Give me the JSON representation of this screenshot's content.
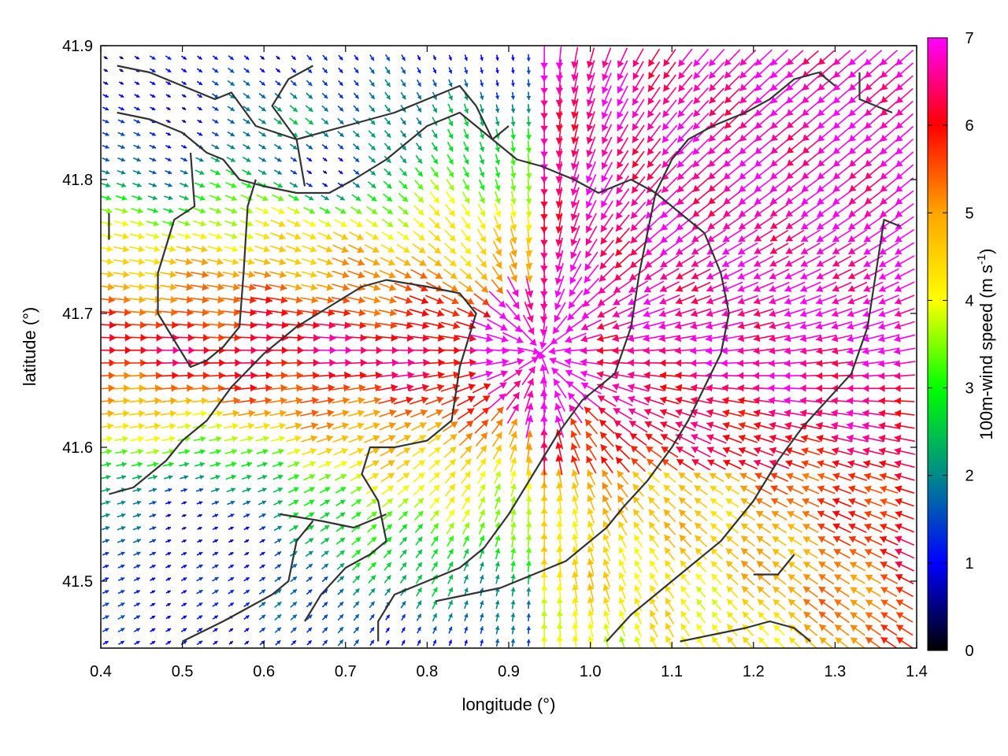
{
  "chart_data": {
    "type": "vector-field",
    "xlabel": "longitude (°)",
    "ylabel": "latitude (°)",
    "xlim": [
      0.4,
      1.4
    ],
    "ylim": [
      41.45,
      41.9
    ],
    "x_ticks": [
      "0.4",
      "0.5",
      "0.6",
      "0.7",
      "0.8",
      "0.9",
      "1.0",
      "1.1",
      "1.2",
      "1.3",
      "1.4"
    ],
    "y_ticks": [
      "41.5",
      "41.6",
      "41.7",
      "41.8",
      "41.9"
    ],
    "grid": false,
    "colorbar": {
      "label_main": "100m-wind speed (m s",
      "label_sup": "-1",
      "label_end": ")",
      "range": [
        0,
        7
      ],
      "ticks": [
        "0",
        "1",
        "2",
        "3",
        "4",
        "5",
        "6",
        "7"
      ],
      "colors": [
        "#000000",
        "#0000ff",
        "#008a8a",
        "#00ff00",
        "#ffff00",
        "#ffa500",
        "#ff0000",
        "#ff00ff"
      ]
    },
    "contour_color": "#333333",
    "contours": [
      [
        [
          0.42,
          41.885
        ],
        [
          0.46,
          41.88
        ],
        [
          0.5,
          41.87
        ],
        [
          0.54,
          41.86
        ],
        [
          0.56,
          41.865
        ],
        [
          0.59,
          41.84
        ],
        [
          0.64,
          41.83
        ],
        [
          0.7,
          41.84
        ],
        [
          0.76,
          41.85
        ],
        [
          0.8,
          41.86
        ],
        [
          0.84,
          41.87
        ],
        [
          0.86,
          41.855
        ]
      ],
      [
        [
          0.42,
          41.85
        ],
        [
          0.46,
          41.845
        ],
        [
          0.5,
          41.835
        ],
        [
          0.53,
          41.82
        ],
        [
          0.55,
          41.815
        ],
        [
          0.57,
          41.8
        ],
        [
          0.6,
          41.795
        ],
        [
          0.64,
          41.79
        ],
        [
          0.68,
          41.79
        ],
        [
          0.71,
          41.8
        ],
        [
          0.75,
          41.815
        ],
        [
          0.8,
          41.84
        ],
        [
          0.84,
          41.85
        ],
        [
          0.88,
          41.83
        ],
        [
          0.9,
          41.84
        ]
      ],
      [
        [
          0.41,
          41.775
        ],
        [
          0.41,
          41.755
        ]
      ],
      [
        [
          0.51,
          41.82
        ],
        [
          0.515,
          41.78
        ],
        [
          0.49,
          41.77
        ],
        [
          0.47,
          41.73
        ],
        [
          0.47,
          41.7
        ],
        [
          0.49,
          41.68
        ],
        [
          0.51,
          41.66
        ],
        [
          0.53,
          41.665
        ],
        [
          0.55,
          41.675
        ],
        [
          0.57,
          41.69
        ],
        [
          0.575,
          41.73
        ],
        [
          0.58,
          41.78
        ],
        [
          0.59,
          41.8
        ]
      ],
      [
        [
          0.41,
          41.565
        ],
        [
          0.44,
          41.57
        ],
        [
          0.48,
          41.59
        ],
        [
          0.5,
          41.605
        ],
        [
          0.53,
          41.62
        ],
        [
          0.56,
          41.645
        ],
        [
          0.6,
          41.67
        ],
        [
          0.64,
          41.69
        ],
        [
          0.68,
          41.705
        ],
        [
          0.72,
          41.72
        ],
        [
          0.75,
          41.725
        ],
        [
          0.8,
          41.72
        ],
        [
          0.84,
          41.715
        ],
        [
          0.86,
          41.7
        ],
        [
          0.84,
          41.66
        ],
        [
          0.83,
          41.62
        ],
        [
          0.8,
          41.605
        ],
        [
          0.76,
          41.6
        ],
        [
          0.73,
          41.6
        ],
        [
          0.72,
          41.58
        ],
        [
          0.74,
          41.56
        ],
        [
          0.75,
          41.53
        ],
        [
          0.73,
          41.52
        ],
        [
          0.7,
          41.51
        ],
        [
          0.67,
          41.49
        ],
        [
          0.65,
          41.47
        ]
      ],
      [
        [
          0.62,
          41.55
        ],
        [
          0.67,
          41.545
        ],
        [
          0.71,
          41.54
        ],
        [
          0.75,
          41.55
        ]
      ],
      [
        [
          0.5,
          41.455
        ],
        [
          0.55,
          41.47
        ],
        [
          0.58,
          41.48
        ],
        [
          0.61,
          41.49
        ],
        [
          0.63,
          41.5
        ],
        [
          0.64,
          41.53
        ],
        [
          0.66,
          41.545
        ]
      ],
      [
        [
          0.74,
          41.455
        ],
        [
          0.74,
          41.47
        ],
        [
          0.76,
          41.49
        ],
        [
          0.8,
          41.5
        ],
        [
          0.84,
          41.51
        ],
        [
          0.87,
          41.525
        ],
        [
          0.9,
          41.55
        ],
        [
          0.93,
          41.58
        ],
        [
          0.96,
          41.61
        ],
        [
          0.99,
          41.635
        ],
        [
          1.03,
          41.655
        ],
        [
          1.05,
          41.69
        ],
        [
          1.06,
          41.73
        ],
        [
          1.07,
          41.76
        ],
        [
          1.08,
          41.79
        ],
        [
          1.1,
          41.815
        ],
        [
          1.12,
          41.83
        ],
        [
          1.15,
          41.84
        ],
        [
          1.19,
          41.85
        ],
        [
          1.22,
          41.86
        ],
        [
          1.25,
          41.875
        ],
        [
          1.28,
          41.88
        ],
        [
          1.3,
          41.87
        ]
      ],
      [
        [
          0.86,
          41.855
        ],
        [
          0.88,
          41.83
        ],
        [
          0.91,
          41.815
        ],
        [
          0.94,
          41.81
        ],
        [
          0.98,
          41.8
        ],
        [
          1.01,
          41.79
        ],
        [
          1.05,
          41.8
        ],
        [
          1.08,
          41.79
        ],
        [
          1.1,
          41.78
        ],
        [
          1.14,
          41.76
        ],
        [
          1.16,
          41.73
        ],
        [
          1.17,
          41.7
        ],
        [
          1.16,
          41.67
        ],
        [
          1.14,
          41.645
        ],
        [
          1.12,
          41.62
        ],
        [
          1.1,
          41.6
        ],
        [
          1.07,
          41.575
        ],
        [
          1.04,
          41.555
        ],
        [
          1.02,
          41.54
        ],
        [
          1.0,
          41.53
        ],
        [
          0.97,
          41.515
        ],
        [
          0.93,
          41.505
        ],
        [
          0.89,
          41.495
        ],
        [
          0.85,
          41.49
        ],
        [
          0.81,
          41.485
        ]
      ],
      [
        [
          1.02,
          41.455
        ],
        [
          1.05,
          41.475
        ],
        [
          1.08,
          41.49
        ],
        [
          1.12,
          41.51
        ],
        [
          1.16,
          41.53
        ],
        [
          1.2,
          41.56
        ],
        [
          1.23,
          41.59
        ],
        [
          1.26,
          41.615
        ],
        [
          1.29,
          41.635
        ],
        [
          1.32,
          41.655
        ],
        [
          1.34,
          41.69
        ],
        [
          1.35,
          41.73
        ],
        [
          1.36,
          41.77
        ],
        [
          1.38,
          41.765
        ]
      ],
      [
        [
          1.11,
          41.455
        ],
        [
          1.15,
          41.46
        ],
        [
          1.19,
          41.465
        ],
        [
          1.22,
          41.47
        ],
        [
          1.25,
          41.465
        ],
        [
          1.27,
          41.455
        ]
      ],
      [
        [
          1.2,
          41.505
        ],
        [
          1.23,
          41.505
        ],
        [
          1.25,
          41.52
        ]
      ],
      [
        [
          1.33,
          41.88
        ],
        [
          1.33,
          41.86
        ],
        [
          1.37,
          41.85
        ]
      ],
      [
        [
          0.65,
          41.795
        ],
        [
          0.64,
          41.83
        ],
        [
          0.61,
          41.855
        ],
        [
          0.63,
          41.875
        ],
        [
          0.66,
          41.885
        ]
      ]
    ],
    "wind_centers": [
      {
        "lon": 0.94,
        "lat": 41.67,
        "speed": 7.0,
        "type": "convergence"
      },
      {
        "lon": 1.2,
        "lat": 41.84,
        "speed": 7.0,
        "type": "flow"
      }
    ]
  }
}
